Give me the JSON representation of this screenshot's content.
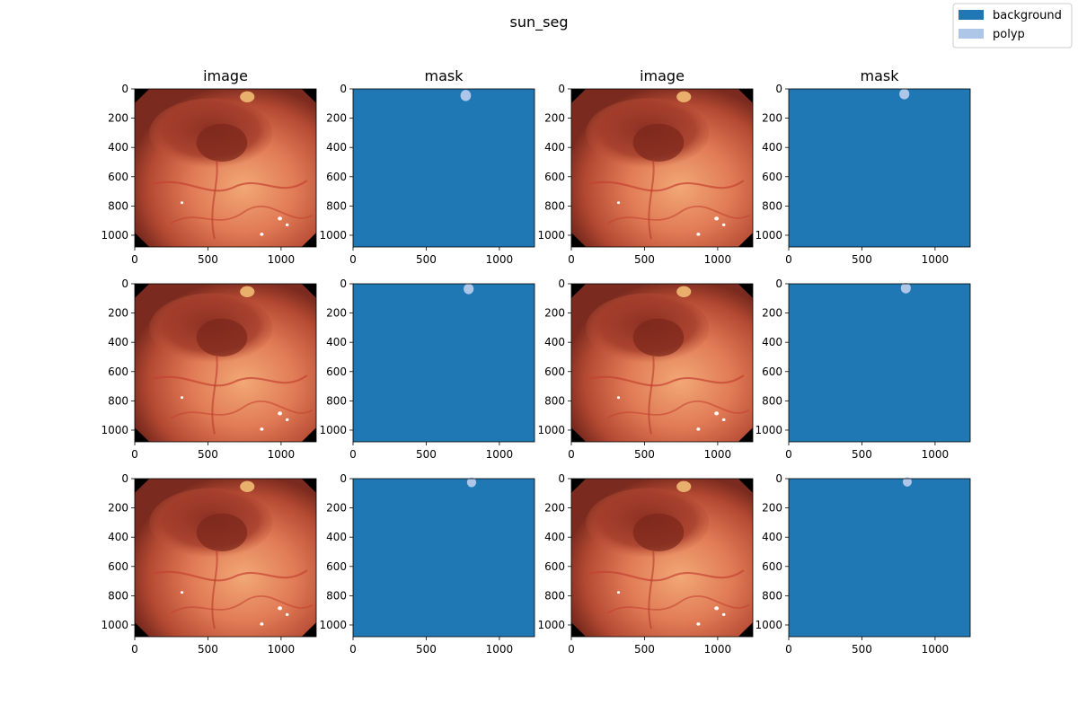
{
  "figure": {
    "title": "sun_seg",
    "legend": {
      "placement": "top-right",
      "entries": [
        {
          "label": "background",
          "color": "#1f77b4"
        },
        {
          "label": "polyp",
          "color": "#aec7e8"
        }
      ]
    },
    "column_titles": [
      "image",
      "mask",
      "image",
      "mask"
    ]
  },
  "chart_data": {
    "type": "image_grid",
    "rows": 3,
    "columns": 4,
    "column_kinds": [
      "image",
      "mask",
      "image",
      "mask"
    ],
    "x_range": [
      0,
      1240
    ],
    "y_range": [
      1080,
      0
    ],
    "x_ticks": [
      "0",
      "500",
      "1000"
    ],
    "y_ticks": [
      "0",
      "200",
      "400",
      "600",
      "800",
      "1000"
    ],
    "colors": {
      "background": "#1f77b4",
      "polyp": "#aec7e8"
    },
    "polyp_blobs": [
      {
        "row": 0,
        "col": 1,
        "cx": 770,
        "cy": 45,
        "r": 40
      },
      {
        "row": 0,
        "col": 3,
        "cx": 790,
        "cy": 35,
        "r": 38
      },
      {
        "row": 1,
        "col": 1,
        "cx": 790,
        "cy": 35,
        "r": 38
      },
      {
        "row": 1,
        "col": 3,
        "cx": 800,
        "cy": 30,
        "r": 38
      },
      {
        "row": 2,
        "col": 1,
        "cx": 810,
        "cy": 25,
        "r": 35
      },
      {
        "row": 2,
        "col": 3,
        "cx": 810,
        "cy": 22,
        "r": 34
      }
    ]
  }
}
